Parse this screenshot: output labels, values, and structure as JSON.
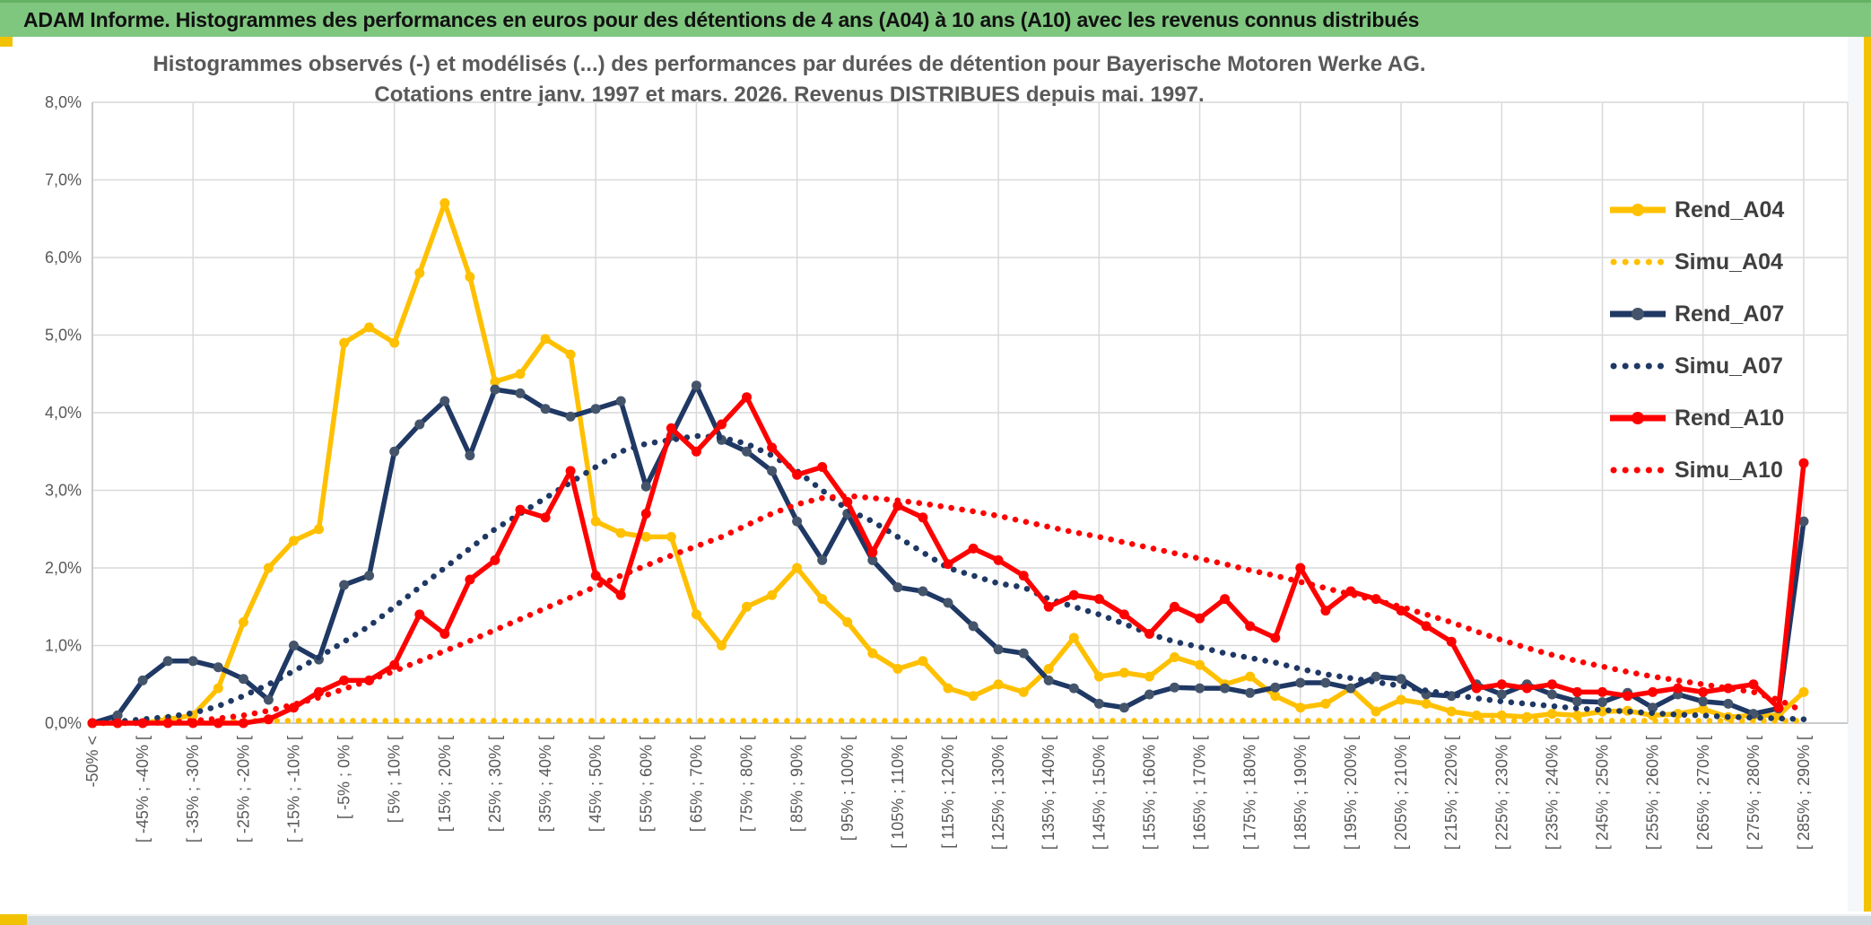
{
  "window": {
    "header_title": "ADAM Informe. Histogrammes des performances en euros pour des détentions de 4 ans (A04) à 10 ans (A10) avec les revenus connus distribués",
    "colors": {
      "header_bg": "#7FC67F",
      "accent_yellow": "#F2C200",
      "grid": "#D9D9D9",
      "axis_text": "#595959",
      "legend_text": "#3F3F3F",
      "gold": "#FFC000",
      "navy": "#1F3864",
      "navy_marker": "#44546A",
      "red": "#FF0000"
    }
  },
  "chart_data": {
    "type": "line",
    "title_line1": "Histogrammes observés (-) et modélisés (...) des performances par durées de détention pour Bayerische Motoren Werke AG.",
    "title_line2": "Cotations entre janv. 1997 et mars. 2026. Revenus DISTRIBUES depuis mai. 1997.",
    "ylim": [
      0,
      8
    ],
    "grid": true,
    "legend_position": "right",
    "y_ticks": [
      "8,0%",
      "7,0%",
      "6,0%",
      "5,0%",
      "4,0%",
      "3,0%",
      "2,0%",
      "1,0%",
      "0,0%"
    ],
    "categories": [
      "-50% <",
      "",
      "[ -45% ; -40% [",
      "",
      "[ -35% ; -30% [",
      "",
      "[ -25% ; -20% [",
      "",
      "[ -15% ; -10% [",
      "",
      "[ -5% ; 0% [",
      "",
      "[ 5% ; 10% [",
      "",
      "[ 15% ; 20% [",
      "",
      "[ 25% ; 30% [",
      "",
      "[ 35% ; 40% [",
      "",
      "[ 45% ; 50% [",
      "",
      "[ 55% ; 60% [",
      "",
      "[ 65% ; 70% [",
      "",
      "[ 75% ; 80% [",
      "",
      "[ 85% ; 90% [",
      "",
      "[ 95% ; 100% [",
      "",
      "[ 105% ; 110% [",
      "",
      "[ 115% ; 120% [",
      "",
      "[ 125% ; 130% [",
      "",
      "[ 135% ; 140% [",
      "",
      "[ 145% ; 150% [",
      "",
      "[ 155% ; 160% [",
      "",
      "[ 165% ; 170% [",
      "",
      "[ 175% ; 180% [",
      "",
      "[ 185% ; 190% [",
      "",
      "[ 195% ; 200% [",
      "",
      "[ 205% ; 210% [",
      "",
      "[ 215% ; 220% [",
      "",
      "[ 225% ; 230% [",
      "",
      "[ 235% ; 240% [",
      "",
      "[ 245% ; 250% [",
      "",
      "[ 255% ; 260% [",
      "",
      "[ 265% ; 270% [",
      "",
      "[ 275% ; 280% [",
      "",
      "[ 285% ; 290% ["
    ],
    "series": [
      {
        "name": "Rend_A04",
        "style": "solid",
        "color": "#FFC000",
        "marker": "#FFC000",
        "values": [
          0.0,
          0.0,
          0.0,
          0.05,
          0.1,
          0.45,
          1.3,
          2.0,
          2.35,
          2.5,
          4.9,
          5.1,
          4.9,
          5.8,
          6.7,
          5.75,
          4.4,
          4.5,
          4.95,
          4.75,
          2.6,
          2.45,
          2.4,
          2.4,
          1.4,
          1.0,
          1.5,
          1.65,
          2.0,
          1.6,
          1.3,
          0.9,
          0.7,
          0.8,
          0.45,
          0.35,
          0.5,
          0.4,
          0.7,
          1.1,
          0.6,
          0.65,
          0.6,
          0.85,
          0.75,
          0.5,
          0.6,
          0.35,
          0.2,
          0.25,
          0.45,
          0.15,
          0.3,
          0.25,
          0.15,
          0.1,
          0.1,
          0.08,
          0.12,
          0.1,
          0.15,
          0.16,
          0.1,
          0.12,
          0.18,
          0.08,
          0.1,
          0.1,
          0.4
        ]
      },
      {
        "name": "Simu_A04",
        "style": "dotted",
        "color": "#FFC000",
        "values": [
          0.03,
          0.03,
          0.03,
          0.03,
          0.03,
          0.03,
          0.03,
          0.03,
          0.03,
          0.03,
          0.03,
          0.03,
          0.03,
          0.03,
          0.03,
          0.03,
          0.03,
          0.03,
          0.03,
          0.03,
          0.03,
          0.03,
          0.03,
          0.03,
          0.03,
          0.03,
          0.03,
          0.03,
          0.03,
          0.03,
          0.03,
          0.03,
          0.03,
          0.03,
          0.03,
          0.03,
          0.03,
          0.03,
          0.03,
          0.03,
          0.03,
          0.03,
          0.03,
          0.03,
          0.03,
          0.03,
          0.03,
          0.03,
          0.03,
          0.03,
          0.03,
          0.03,
          0.03,
          0.03,
          0.03,
          0.03,
          0.03,
          0.03,
          0.03,
          0.03,
          0.03,
          0.03,
          0.03,
          0.03,
          0.03,
          0.03,
          0.03,
          0.03,
          0.03
        ]
      },
      {
        "name": "Rend_A07",
        "style": "solid",
        "color": "#1F3864",
        "marker": "#44546A",
        "values": [
          0.0,
          0.1,
          0.55,
          0.8,
          0.8,
          0.72,
          0.57,
          0.3,
          1.0,
          0.82,
          1.78,
          1.9,
          3.5,
          3.85,
          4.15,
          3.45,
          4.3,
          4.25,
          4.05,
          3.95,
          4.05,
          4.15,
          3.05,
          3.7,
          4.35,
          3.65,
          3.5,
          3.25,
          2.6,
          2.1,
          2.7,
          2.1,
          1.75,
          1.7,
          1.55,
          1.25,
          0.95,
          0.9,
          0.55,
          0.45,
          0.25,
          0.2,
          0.37,
          0.46,
          0.45,
          0.45,
          0.39,
          0.46,
          0.52,
          0.52,
          0.45,
          0.6,
          0.57,
          0.37,
          0.35,
          0.5,
          0.37,
          0.5,
          0.37,
          0.28,
          0.27,
          0.39,
          0.2,
          0.37,
          0.28,
          0.25,
          0.12,
          0.19,
          2.6
        ]
      },
      {
        "name": "Simu_A07",
        "style": "dotted",
        "color": "#1F3864",
        "values": [
          0.0,
          0.02,
          0.05,
          0.08,
          0.13,
          0.22,
          0.35,
          0.5,
          0.67,
          0.85,
          1.05,
          1.25,
          1.5,
          1.75,
          2.0,
          2.25,
          2.5,
          2.7,
          2.9,
          3.1,
          3.3,
          3.5,
          3.6,
          3.65,
          3.7,
          3.68,
          3.6,
          3.45,
          3.25,
          3.0,
          2.75,
          2.6,
          2.4,
          2.2,
          2.0,
          1.9,
          1.8,
          1.75,
          1.6,
          1.5,
          1.4,
          1.28,
          1.15,
          1.05,
          0.98,
          0.9,
          0.84,
          0.78,
          0.7,
          0.63,
          0.58,
          0.53,
          0.48,
          0.42,
          0.37,
          0.32,
          0.28,
          0.25,
          0.22,
          0.19,
          0.17,
          0.15,
          0.13,
          0.11,
          0.1,
          0.08,
          0.07,
          0.06,
          0.05
        ]
      },
      {
        "name": "Rend_A10",
        "style": "solid",
        "color": "#FF0000",
        "marker": "#FF0000",
        "values": [
          0.0,
          0.0,
          0.0,
          0.0,
          0.0,
          0.0,
          0.0,
          0.05,
          0.2,
          0.4,
          0.55,
          0.55,
          0.75,
          1.4,
          1.15,
          1.85,
          2.1,
          2.75,
          2.65,
          3.25,
          1.9,
          1.65,
          2.7,
          3.8,
          3.5,
          3.85,
          4.2,
          3.55,
          3.2,
          3.3,
          2.85,
          2.2,
          2.8,
          2.65,
          2.05,
          2.25,
          2.1,
          1.9,
          1.5,
          1.65,
          1.6,
          1.4,
          1.15,
          1.5,
          1.35,
          1.6,
          1.25,
          1.1,
          2.0,
          1.45,
          1.7,
          1.6,
          1.45,
          1.25,
          1.05,
          0.45,
          0.5,
          0.45,
          0.5,
          0.4,
          0.4,
          0.35,
          0.4,
          0.45,
          0.4,
          0.45,
          0.5,
          0.2,
          3.35
        ]
      },
      {
        "name": "Simu_A10",
        "style": "dotted",
        "color": "#FF0000",
        "values": [
          0.0,
          0.0,
          0.0,
          0.01,
          0.03,
          0.06,
          0.1,
          0.16,
          0.24,
          0.33,
          0.44,
          0.55,
          0.67,
          0.8,
          0.93,
          1.06,
          1.2,
          1.34,
          1.48,
          1.62,
          1.76,
          1.9,
          2.03,
          2.16,
          2.28,
          2.4,
          2.55,
          2.7,
          2.82,
          2.9,
          2.93,
          2.9,
          2.87,
          2.83,
          2.78,
          2.73,
          2.67,
          2.6,
          2.53,
          2.46,
          2.4,
          2.33,
          2.26,
          2.19,
          2.12,
          2.05,
          1.97,
          1.9,
          1.82,
          1.74,
          1.66,
          1.58,
          1.5,
          1.4,
          1.3,
          1.18,
          1.07,
          0.97,
          0.88,
          0.8,
          0.73,
          0.66,
          0.6,
          0.55,
          0.5,
          0.45,
          0.4,
          0.3,
          0.15
        ]
      }
    ]
  }
}
